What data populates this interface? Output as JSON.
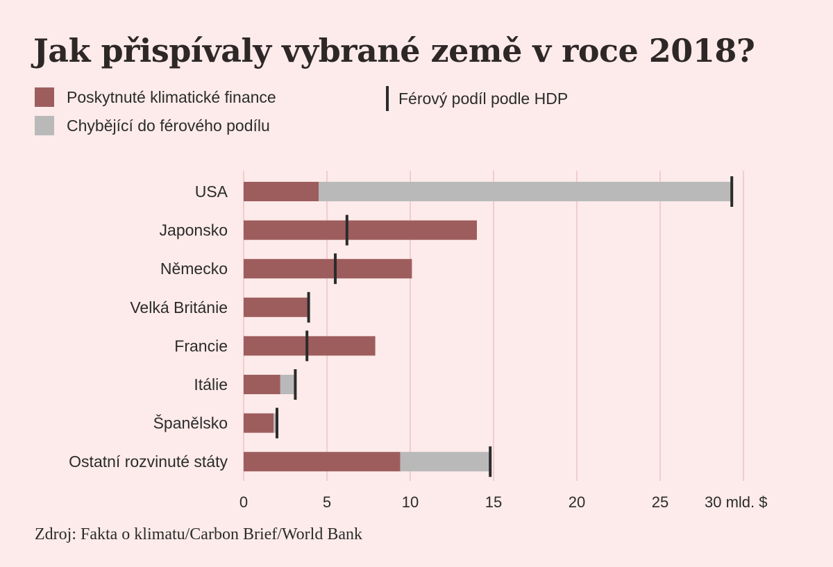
{
  "title": "Jak přispívaly vybrané země v roce 2018?",
  "legend": {
    "provided": "Poskytnuté klimatické finance",
    "missing": "Chybějící do férového podílu",
    "fair_share": "Férový podíl podle HDP"
  },
  "source": "Zdroj: Fakta o klimatu/Carbon Brief/World Bank",
  "colors": {
    "background": "#fcebea",
    "provided": "#9e5d5d",
    "missing": "#b9b9b9",
    "fair_share": "#2b2b2b",
    "grid": "#efc1c5"
  },
  "chart_data": {
    "type": "bar",
    "orientation": "horizontal",
    "stacked": true,
    "categories": [
      "USA",
      "Japonsko",
      "Německo",
      "Velká Británie",
      "Francie",
      "Itálie",
      "Španělsko",
      "Ostatní rozvinuté státy"
    ],
    "series": [
      {
        "name": "Poskytnuté klimatické finance",
        "values": [
          4.5,
          14.0,
          10.1,
          3.9,
          7.9,
          2.2,
          1.8,
          9.4
        ]
      },
      {
        "name": "Chybějící do férového podílu",
        "values": [
          24.8,
          0,
          0,
          0,
          0,
          0.9,
          0.2,
          5.4
        ]
      }
    ],
    "markers": {
      "name": "Férový podíl podle HDP",
      "values": [
        29.3,
        6.2,
        5.5,
        3.9,
        3.8,
        3.1,
        2.0,
        14.8
      ]
    },
    "x_ticks": [
      0,
      5,
      10,
      15,
      20,
      25,
      30
    ],
    "x_tick_labels": [
      "0",
      "5",
      "10",
      "15",
      "20",
      "25",
      "30 mld. $"
    ],
    "xlim": [
      0,
      30
    ],
    "grid": true
  }
}
